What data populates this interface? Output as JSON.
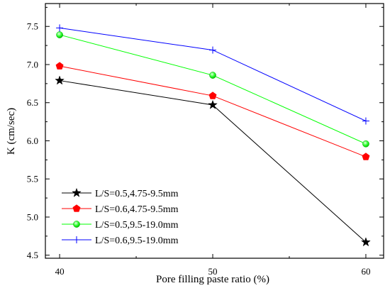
{
  "chart_data": {
    "type": "line",
    "xlabel": "Pore filling paste ratio (%)",
    "ylabel": "K (cm/sec)",
    "x": [
      40,
      50,
      60
    ],
    "xlim": [
      39.07,
      61.16
    ],
    "ylim": [
      4.46,
      7.8
    ],
    "x_ticks": [
      "40",
      "50",
      "60"
    ],
    "y_ticks": [
      "4.5",
      "5.0",
      "5.5",
      "6.0",
      "6.5",
      "7.0",
      "7.5"
    ],
    "grid": false,
    "legend_position": "bottom-left",
    "series": [
      {
        "name": "L/S=0.5,4.75-9.5mm",
        "values": [
          6.79,
          6.47,
          4.67
        ],
        "color": "#000000",
        "marker": "star"
      },
      {
        "name": "L/S=0.6,4.75-9.5mm",
        "values": [
          6.98,
          6.59,
          5.79
        ],
        "color": "#ff0000",
        "marker": "pentagon"
      },
      {
        "name": "L/S=0.5,9.5-19.0mm",
        "values": [
          7.39,
          6.86,
          5.96
        ],
        "color": "#00ff00",
        "marker": "circle"
      },
      {
        "name": "L/S=0.6,9.5-19.0mm",
        "values": [
          7.48,
          7.19,
          6.26
        ],
        "color": "#0000ff",
        "marker": "plus"
      }
    ]
  }
}
